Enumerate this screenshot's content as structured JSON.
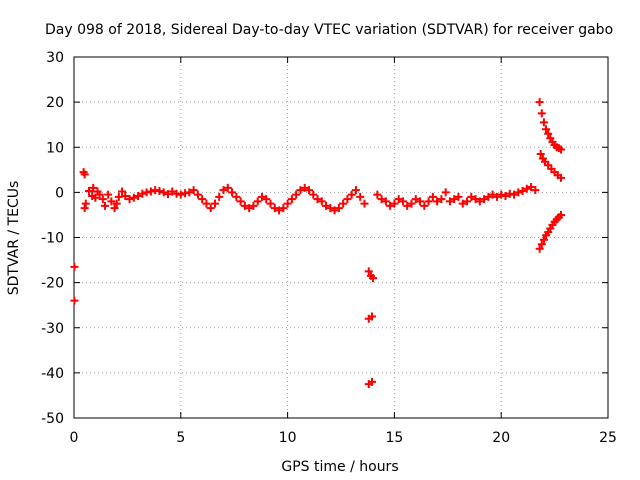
{
  "chart_data": {
    "type": "scatter",
    "title": "Day 098 of 2018, Sidereal Day-to-day VTEC variation (SDTVAR) for receiver gabo",
    "xlabel": "GPS time / hours",
    "ylabel": "SDTVAR / TECUs",
    "xlim": [
      0,
      25
    ],
    "ylim": [
      -50,
      30
    ],
    "xticks": [
      0,
      5,
      10,
      15,
      20,
      25
    ],
    "yticks": [
      -50,
      -40,
      -30,
      -20,
      -10,
      0,
      10,
      20,
      30
    ],
    "grid": true,
    "legend": "none",
    "marker": "plus",
    "color": "#ff0000",
    "series": [
      {
        "points": [
          [
            0.02,
            -16.5
          ],
          [
            0.02,
            -24.0
          ],
          [
            0.45,
            4.5
          ],
          [
            0.5,
            4.0
          ],
          [
            0.5,
            -3.5
          ],
          [
            0.55,
            -2.5
          ],
          [
            0.7,
            0.3
          ],
          [
            0.85,
            -0.8
          ],
          [
            0.9,
            1.0
          ],
          [
            1.0,
            -1.2
          ],
          [
            1.1,
            0.2
          ],
          [
            1.2,
            -0.5
          ],
          [
            1.35,
            -1.5
          ],
          [
            1.45,
            -3.0
          ],
          [
            1.6,
            -0.5
          ],
          [
            1.75,
            -2.0
          ],
          [
            1.9,
            -3.5
          ],
          [
            2.0,
            -2.5
          ],
          [
            2.1,
            -1.0
          ],
          [
            2.25,
            0.2
          ],
          [
            2.4,
            -0.8
          ],
          [
            2.6,
            -1.5
          ],
          [
            2.8,
            -1.2
          ],
          [
            3.0,
            -0.8
          ],
          [
            3.2,
            -0.3
          ],
          [
            3.4,
            0.0
          ],
          [
            3.6,
            0.2
          ],
          [
            3.8,
            0.5
          ],
          [
            4.0,
            0.3
          ],
          [
            4.2,
            0.0
          ],
          [
            4.4,
            -0.4
          ],
          [
            4.6,
            0.2
          ],
          [
            4.8,
            -0.3
          ],
          [
            5.0,
            -0.5
          ],
          [
            5.2,
            -0.2
          ],
          [
            5.4,
            0.0
          ],
          [
            5.6,
            0.5
          ],
          [
            5.8,
            -0.5
          ],
          [
            6.0,
            -1.5
          ],
          [
            6.2,
            -2.5
          ],
          [
            6.4,
            -3.5
          ],
          [
            6.6,
            -2.5
          ],
          [
            6.8,
            -1.0
          ],
          [
            7.0,
            0.5
          ],
          [
            7.2,
            1.0
          ],
          [
            7.4,
            0.0
          ],
          [
            7.6,
            -1.0
          ],
          [
            7.8,
            -2.0
          ],
          [
            8.0,
            -3.0
          ],
          [
            8.2,
            -3.5
          ],
          [
            8.4,
            -3.0
          ],
          [
            8.6,
            -2.0
          ],
          [
            8.8,
            -1.0
          ],
          [
            9.0,
            -1.5
          ],
          [
            9.2,
            -2.5
          ],
          [
            9.4,
            -3.5
          ],
          [
            9.6,
            -4.0
          ],
          [
            9.8,
            -3.5
          ],
          [
            10.0,
            -2.5
          ],
          [
            10.2,
            -1.5
          ],
          [
            10.4,
            -0.5
          ],
          [
            10.6,
            0.5
          ],
          [
            10.8,
            1.0
          ],
          [
            11.0,
            0.5
          ],
          [
            11.2,
            -0.5
          ],
          [
            11.4,
            -1.5
          ],
          [
            11.6,
            -2.0
          ],
          [
            11.8,
            -3.0
          ],
          [
            12.0,
            -3.5
          ],
          [
            12.2,
            -4.0
          ],
          [
            12.4,
            -3.5
          ],
          [
            12.6,
            -2.5
          ],
          [
            12.8,
            -1.5
          ],
          [
            13.0,
            -0.5
          ],
          [
            13.2,
            0.5
          ],
          [
            13.4,
            -1.0
          ],
          [
            13.6,
            -2.5
          ],
          [
            13.8,
            -17.5
          ],
          [
            13.9,
            -18.5
          ],
          [
            14.0,
            -19.0
          ],
          [
            13.8,
            -28.0
          ],
          [
            13.95,
            -27.5
          ],
          [
            13.8,
            -42.5
          ],
          [
            13.95,
            -42.0
          ],
          [
            14.2,
            -0.5
          ],
          [
            14.4,
            -1.5
          ],
          [
            14.6,
            -2.0
          ],
          [
            14.8,
            -3.0
          ],
          [
            15.0,
            -2.5
          ],
          [
            15.2,
            -1.5
          ],
          [
            15.4,
            -2.0
          ],
          [
            15.6,
            -3.0
          ],
          [
            15.8,
            -2.5
          ],
          [
            16.0,
            -1.5
          ],
          [
            16.2,
            -2.0
          ],
          [
            16.4,
            -3.0
          ],
          [
            16.6,
            -2.0
          ],
          [
            16.8,
            -1.0
          ],
          [
            17.0,
            -2.0
          ],
          [
            17.2,
            -1.5
          ],
          [
            17.4,
            0.0
          ],
          [
            17.6,
            -2.0
          ],
          [
            17.8,
            -1.5
          ],
          [
            18.0,
            -1.0
          ],
          [
            18.2,
            -2.5
          ],
          [
            18.4,
            -2.0
          ],
          [
            18.6,
            -1.0
          ],
          [
            18.8,
            -1.5
          ],
          [
            19.0,
            -2.0
          ],
          [
            19.2,
            -1.5
          ],
          [
            19.4,
            -1.0
          ],
          [
            19.6,
            -0.5
          ],
          [
            19.8,
            -1.0
          ],
          [
            20.0,
            -0.5
          ],
          [
            20.2,
            -0.8
          ],
          [
            20.4,
            -0.3
          ],
          [
            20.6,
            -0.5
          ],
          [
            20.8,
            0.0
          ],
          [
            21.0,
            0.3
          ],
          [
            21.2,
            0.8
          ],
          [
            21.4,
            1.2
          ],
          [
            21.6,
            0.5
          ],
          [
            21.8,
            20.0
          ],
          [
            21.9,
            17.5
          ],
          [
            22.0,
            15.5
          ],
          [
            22.1,
            14.0
          ],
          [
            22.2,
            13.0
          ],
          [
            22.3,
            12.0
          ],
          [
            22.4,
            11.2
          ],
          [
            22.5,
            10.5
          ],
          [
            22.6,
            10.0
          ],
          [
            22.7,
            9.8
          ],
          [
            22.8,
            9.5
          ],
          [
            21.85,
            8.5
          ],
          [
            21.95,
            7.5
          ],
          [
            22.05,
            6.8
          ],
          [
            22.2,
            6.0
          ],
          [
            22.35,
            5.2
          ],
          [
            22.5,
            4.5
          ],
          [
            22.65,
            3.8
          ],
          [
            22.8,
            3.2
          ],
          [
            21.8,
            -12.5
          ],
          [
            21.9,
            -11.5
          ],
          [
            22.0,
            -10.5
          ],
          [
            22.1,
            -9.5
          ],
          [
            22.2,
            -8.8
          ],
          [
            22.3,
            -8.0
          ],
          [
            22.4,
            -7.2
          ],
          [
            22.5,
            -6.5
          ],
          [
            22.6,
            -6.0
          ],
          [
            22.7,
            -5.5
          ],
          [
            22.8,
            -5.0
          ]
        ]
      }
    ]
  }
}
